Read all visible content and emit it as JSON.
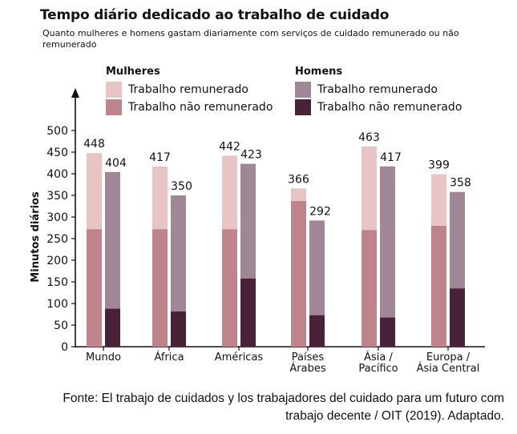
{
  "header": {
    "title": "Tempo diário dedicado ao trabalho de cuidado",
    "subtitle": "Quanto mulheres e homens gastam diariamente com serviços de cuidado remunerado ou não remunerado"
  },
  "legend": {
    "women": {
      "title": "Mulheres",
      "items": [
        {
          "label": "Trabalho remunerado",
          "color": "#e8c4c4"
        },
        {
          "label": "Trabalho não remunerado",
          "color": "#be838b"
        }
      ]
    },
    "men": {
      "title": "Homens",
      "items": [
        {
          "label": "Trabalho remunerado",
          "color": "#a08796"
        },
        {
          "label": "Trabalho não remunerado",
          "color": "#4a2238"
        }
      ]
    }
  },
  "chart_data": {
    "type": "bar",
    "stacked": true,
    "ylabel": "Minutos diários",
    "ylim": [
      0,
      500
    ],
    "yticks": [
      0,
      50,
      100,
      150,
      200,
      250,
      300,
      350,
      400,
      450,
      500
    ],
    "categories": [
      "Mundo",
      "África",
      "Américas",
      "Países Árabes",
      "Ásia / Pacífico",
      "Europa / Ásia Central"
    ],
    "category_lines": [
      [
        "Mundo"
      ],
      [
        "África"
      ],
      [
        "Américas"
      ],
      [
        "Países",
        "Árabes"
      ],
      [
        "Ásia /",
        "Pacífico"
      ],
      [
        "Europa /",
        "Ásia Central"
      ]
    ],
    "series": [
      {
        "group": "Mulheres",
        "name": "Trabalho não remunerado",
        "color": "#be838b",
        "values": [
          272,
          272,
          272,
          337,
          270,
          280
        ]
      },
      {
        "group": "Mulheres",
        "name": "Trabalho remunerado",
        "color": "#e8c4c4",
        "values": [
          176,
          145,
          170,
          29,
          193,
          119
        ]
      },
      {
        "group": "Homens",
        "name": "Trabalho não remunerado",
        "color": "#4a2238",
        "values": [
          88,
          82,
          158,
          73,
          68,
          135
        ]
      },
      {
        "group": "Homens",
        "name": "Trabalho remunerado",
        "color": "#a08796",
        "values": [
          316,
          268,
          265,
          219,
          349,
          223
        ]
      }
    ],
    "totals": {
      "Mulheres": [
        448,
        417,
        442,
        366,
        463,
        399
      ],
      "Homens": [
        404,
        350,
        423,
        292,
        417,
        358
      ]
    }
  },
  "footer": {
    "line1": "Fonte: El trabajo de cuidados y los trabajadores del cuidado para um futuro com",
    "line2": "trabajo decente / OIT (2019). Adaptado."
  }
}
